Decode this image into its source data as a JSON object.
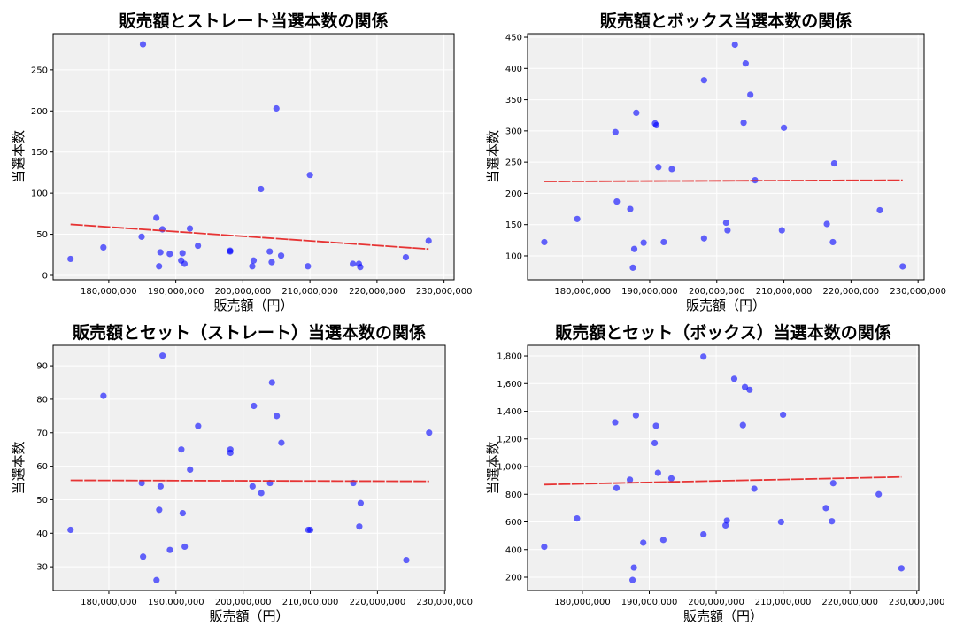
{
  "chart_data": [
    {
      "type": "scatter",
      "title": "販売額とストレート当選本数の関係",
      "xlabel": "販売額（円）",
      "ylabel": "当選本数",
      "xlim": [
        171700000,
        231500000
      ],
      "ylim": [
        -5.4,
        294
      ],
      "xticks": [
        180000000,
        190000000,
        200000000,
        210000000,
        220000000,
        230000000
      ],
      "yticks": [
        0,
        50,
        100,
        150,
        200,
        250
      ],
      "grid": true,
      "points": {
        "x": [
          174300000,
          179200000,
          184900000,
          185100000,
          187100000,
          187500000,
          187700000,
          188000000,
          189100000,
          190800000,
          191000000,
          191300000,
          192100000,
          193300000,
          198100000,
          198100000,
          201400000,
          201600000,
          202700000,
          204000000,
          204300000,
          205000000,
          205700000,
          209700000,
          210000000,
          216400000,
          217300000,
          217500000,
          224300000,
          227700000
        ],
        "y": [
          20,
          34,
          47,
          281,
          70,
          11,
          28,
          56,
          26,
          18,
          27,
          14,
          57,
          36,
          29,
          30,
          11,
          18,
          105,
          29,
          16,
          203,
          24,
          11,
          122,
          14,
          14,
          10,
          22,
          42
        ]
      },
      "trend": {
        "x": [
          174300000,
          227700000
        ],
        "y": [
          62,
          32
        ]
      },
      "point_color": "#0000ff",
      "trend_color": "#e62020"
    },
    {
      "type": "scatter",
      "title": "販売額とボックス当選本数の関係",
      "xlabel": "販売額（円）",
      "ylabel": "当選本数",
      "xlim": [
        171800000,
        230900000
      ],
      "ylim": [
        61.7,
        455.7
      ],
      "xticks": [
        180000000,
        190000000,
        200000000,
        210000000,
        220000000,
        230000000
      ],
      "yticks": [
        100,
        150,
        200,
        250,
        300,
        350,
        400,
        450
      ],
      "grid": true,
      "points": {
        "x": [
          174300000,
          179200000,
          184900000,
          185100000,
          187100000,
          187500000,
          187700000,
          188000000,
          189100000,
          190800000,
          191000000,
          191300000,
          192100000,
          193300000,
          198100000,
          198100000,
          201400000,
          201600000,
          202700000,
          204000000,
          204300000,
          205000000,
          205700000,
          209700000,
          210000000,
          216400000,
          217300000,
          217500000,
          224300000,
          227700000
        ],
        "y": [
          122,
          159,
          298,
          187,
          175,
          81,
          111,
          329,
          121,
          312,
          309,
          242,
          122,
          239,
          381,
          128,
          153,
          141,
          438,
          313,
          408,
          358,
          221,
          141,
          305,
          151,
          122,
          248,
          173,
          83
        ]
      },
      "trend": {
        "x": [
          174300000,
          227700000
        ],
        "y": [
          219,
          221
        ]
      },
      "point_color": "#0000ff",
      "trend_color": "#e62020"
    },
    {
      "type": "scatter",
      "title": "販売額とセット（ストレート）当選本数の関係",
      "xlabel": "販売額（円）",
      "ylabel": "当選本数",
      "xlim": [
        171700000,
        230100000
      ],
      "ylim": [
        22.9,
        96.1
      ],
      "xticks": [
        180000000,
        190000000,
        200000000,
        210000000,
        220000000,
        230000000
      ],
      "yticks": [
        30,
        40,
        50,
        60,
        70,
        80,
        90
      ],
      "grid": true,
      "points": {
        "x": [
          174300000,
          179200000,
          184900000,
          185100000,
          187100000,
          187500000,
          187700000,
          188000000,
          189100000,
          190800000,
          191000000,
          191300000,
          192100000,
          193300000,
          198100000,
          198100000,
          201400000,
          201600000,
          202700000,
          204000000,
          204300000,
          205000000,
          205700000,
          209700000,
          210000000,
          216400000,
          217300000,
          217500000,
          224300000,
          227700000
        ],
        "y": [
          41,
          81,
          55,
          33,
          26,
          47,
          54,
          93,
          35,
          65,
          46,
          36,
          59,
          72,
          65,
          64,
          54,
          78,
          52,
          55,
          85,
          75,
          67,
          41,
          41,
          55,
          42,
          49,
          32,
          70
        ]
      },
      "trend": {
        "x": [
          174300000,
          227700000
        ],
        "y": [
          55.8,
          55.5
        ]
      },
      "point_color": "#0000ff",
      "trend_color": "#e62020"
    },
    {
      "type": "scatter",
      "title": "販売額とセット（ボックス）当選本数の関係",
      "xlabel": "販売額（円）",
      "ylabel": "当選本数",
      "xlim": [
        171800000,
        230300000
      ],
      "ylim": [
        104,
        1877
      ],
      "xticks": [
        180000000,
        190000000,
        200000000,
        210000000,
        220000000,
        230000000
      ],
      "yticks": [
        200,
        400,
        600,
        800,
        1000,
        1200,
        1400,
        1600,
        1800
      ],
      "grid": true,
      "points": {
        "x": [
          174300000,
          179200000,
          184900000,
          185100000,
          187100000,
          187500000,
          187700000,
          188000000,
          189100000,
          190800000,
          191000000,
          191300000,
          192100000,
          193300000,
          198100000,
          198100000,
          201400000,
          201600000,
          202700000,
          204000000,
          204300000,
          205000000,
          205700000,
          209700000,
          210000000,
          216400000,
          217300000,
          217500000,
          224300000,
          227700000
        ],
        "y": [
          420,
          625,
          1320,
          845,
          905,
          180,
          270,
          1370,
          450,
          1170,
          1295,
          955,
          470,
          915,
          1795,
          510,
          575,
          610,
          1635,
          1300,
          1575,
          1555,
          840,
          600,
          1375,
          700,
          605,
          880,
          800,
          265
        ]
      },
      "trend": {
        "x": [
          174300000,
          227700000
        ],
        "y": [
          870,
          925
        ]
      },
      "point_color": "#0000ff",
      "trend_color": "#e62020"
    }
  ]
}
